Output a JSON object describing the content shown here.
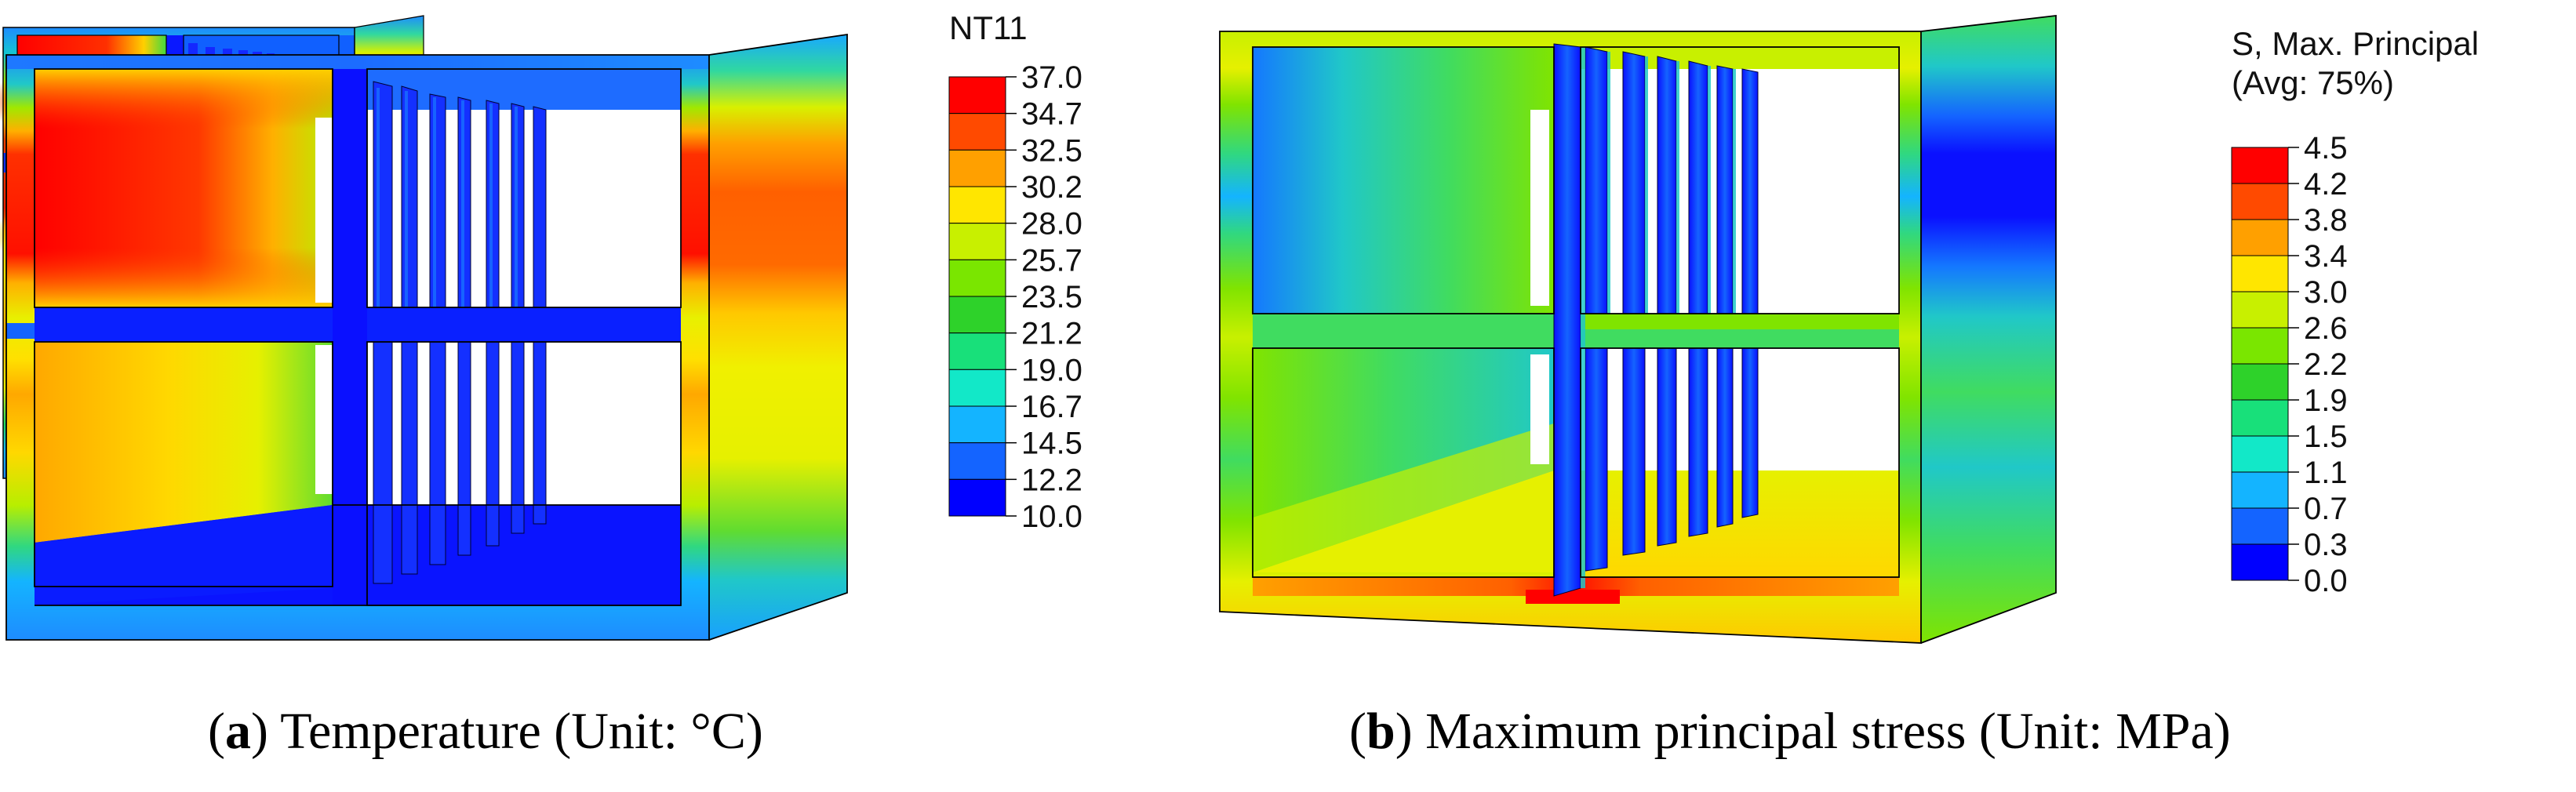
{
  "panel_a": {
    "legend_title": "NT11",
    "legend_ticks": [
      "37.0",
      "34.7",
      "32.5",
      "30.2",
      "28.0",
      "25.7",
      "23.5",
      "21.2",
      "19.0",
      "16.7",
      "14.5",
      "12.2",
      "10.0"
    ],
    "caption_open": "(",
    "caption_letter": "a",
    "caption_text": ") Temperature (Unit: °C)"
  },
  "panel_b": {
    "legend_title_line1": "S, Max. Principal",
    "legend_title_line2": "(Avg: 75%)",
    "legend_ticks": [
      "4.5",
      "4.2",
      "3.8",
      "3.4",
      "3.0",
      "2.6",
      "2.2",
      "1.9",
      "1.5",
      "1.1",
      "0.7",
      "0.3",
      "0.0"
    ],
    "caption_open": "(",
    "caption_letter": "b",
    "caption_text": ") Maximum principal stress (Unit: MPa)"
  },
  "colors": {
    "scale_a": [
      "#ff0000",
      "#ff4a00",
      "#ffa000",
      "#ffe600",
      "#c8f000",
      "#7ae600",
      "#2ed22a",
      "#18e07a",
      "#12e8c8",
      "#14b4ff",
      "#1464ff",
      "#0000ff"
    ],
    "scale_b": [
      "#ff0000",
      "#ff4a00",
      "#ffa000",
      "#ffe600",
      "#c8f000",
      "#7ae600",
      "#2ed22a",
      "#18e07a",
      "#12e8c8",
      "#14b4ff",
      "#1464ff",
      "#0000ff"
    ]
  }
}
